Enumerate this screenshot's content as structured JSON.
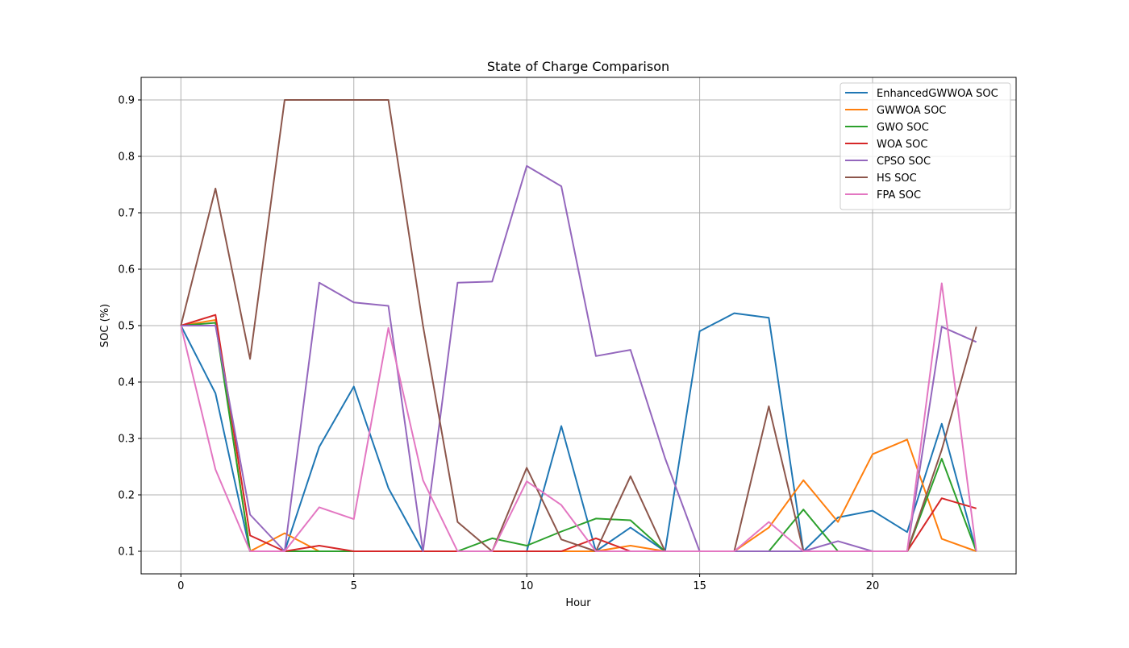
{
  "chart_data": {
    "type": "line",
    "title": "State of Charge Comparison",
    "xlabel": "Hour",
    "ylabel": "SOC (%)",
    "xlim": [
      -1.15,
      24.15
    ],
    "ylim": [
      0.06,
      0.94
    ],
    "xticks": [
      0,
      5,
      10,
      15,
      20
    ],
    "yticks": [
      0.1,
      0.2,
      0.3,
      0.4,
      0.5,
      0.6,
      0.7,
      0.8,
      0.9
    ],
    "grid": true,
    "legend_position": "top-right",
    "x": [
      0,
      1,
      2,
      3,
      4,
      5,
      6,
      7,
      8,
      9,
      10,
      11,
      12,
      13,
      14,
      15,
      16,
      17,
      18,
      19,
      20,
      21,
      22,
      23
    ],
    "series": [
      {
        "name": "EnhancedGWWOA SOC",
        "color": "#1f77b4",
        "values": [
          0.5,
          0.38,
          0.1,
          0.1,
          0.285,
          0.392,
          0.212,
          0.1,
          0.1,
          0.1,
          0.1,
          0.322,
          0.1,
          0.142,
          0.1,
          0.49,
          0.522,
          0.514,
          0.1,
          0.16,
          0.172,
          0.134,
          0.326,
          0.1
        ]
      },
      {
        "name": "GWWOA SOC",
        "color": "#ff7f0e",
        "values": [
          0.5,
          0.51,
          0.1,
          0.132,
          0.1,
          0.1,
          0.1,
          0.1,
          0.1,
          0.1,
          0.1,
          0.1,
          0.1,
          0.11,
          0.1,
          0.1,
          0.1,
          0.142,
          0.226,
          0.152,
          0.272,
          0.298,
          0.122,
          0.1
        ]
      },
      {
        "name": "GWO SOC",
        "color": "#2ca02c",
        "values": [
          0.5,
          0.505,
          0.1,
          0.1,
          0.1,
          0.1,
          0.1,
          0.1,
          0.1,
          0.123,
          0.11,
          0.135,
          0.158,
          0.155,
          0.1,
          0.1,
          0.1,
          0.1,
          0.174,
          0.1,
          0.1,
          0.1,
          0.264,
          0.1
        ]
      },
      {
        "name": "WOA SOC",
        "color": "#d62728",
        "values": [
          0.5,
          0.519,
          0.128,
          0.1,
          0.11,
          0.1,
          0.1,
          0.1,
          0.1,
          0.1,
          0.1,
          0.1,
          0.123,
          0.1,
          0.1,
          0.1,
          0.1,
          0.1,
          0.1,
          0.1,
          0.1,
          0.1,
          0.194,
          0.176
        ]
      },
      {
        "name": "CPSO SOC",
        "color": "#9467bd",
        "values": [
          0.5,
          0.5,
          0.165,
          0.1,
          0.576,
          0.541,
          0.535,
          0.1,
          0.576,
          0.578,
          0.783,
          0.747,
          0.446,
          0.457,
          0.265,
          0.1,
          0.1,
          0.1,
          0.1,
          0.118,
          0.1,
          0.1,
          0.498,
          0.471
        ]
      },
      {
        "name": "HS SOC",
        "color": "#8c564b",
        "values": [
          0.5,
          0.743,
          0.441,
          0.9,
          0.9,
          0.9,
          0.9,
          0.5,
          0.152,
          0.1,
          0.248,
          0.121,
          0.1,
          0.233,
          0.1,
          0.1,
          0.1,
          0.357,
          0.1,
          0.1,
          0.1,
          0.1,
          0.28,
          0.498
        ]
      },
      {
        "name": "FPA SOC",
        "color": "#e377c2",
        "values": [
          0.5,
          0.245,
          0.1,
          0.1,
          0.178,
          0.157,
          0.496,
          0.226,
          0.1,
          0.1,
          0.224,
          0.182,
          0.1,
          0.1,
          0.1,
          0.1,
          0.1,
          0.152,
          0.1,
          0.1,
          0.1,
          0.1,
          0.575,
          0.1
        ]
      }
    ]
  }
}
